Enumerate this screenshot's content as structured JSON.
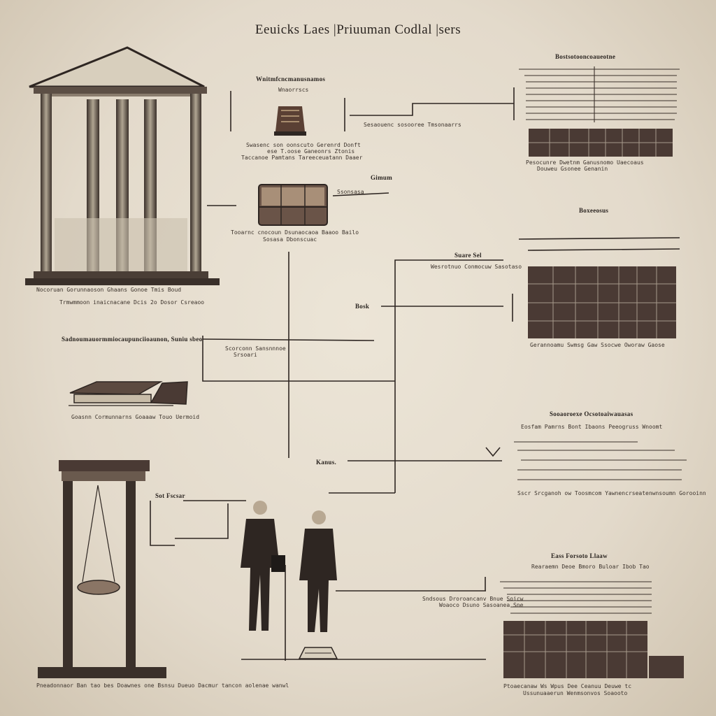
{
  "title": "Eeuicks Laes |Priuuman Codlal |sers",
  "colors": {
    "paper": "#e6ddce",
    "ink": "#2a2420",
    "block": "#4a3a34"
  },
  "icons": [
    "temple-icon",
    "pot-icon",
    "chest-icon",
    "book-icon",
    "scale-icon",
    "gavel-icon",
    "two-men-illustration"
  ],
  "temple": {
    "cap1": "Nocoruan Gorunnaoson Ghaans Gonoe Tmis Boud",
    "cap2": "Trmwmmoon inaicnacane Dcis 2o Dosor Csreaoo"
  },
  "pot": {
    "head": "Wnitmfcncmanusnamos",
    "sub": "Wnaorrscs",
    "cap1": "Swasenc son oonscuto Gerenrd Donft",
    "cap2": "ese T.oose Ganeonrs Ztonis",
    "cap3": "Taccanoe Pamtans Tareeceuatann Daaer"
  },
  "chest": {
    "head": "Gimum",
    "tag": "Ssonsasa",
    "cap1": "Tooarnc cnocoun Dsunaocaoa Baaoo Bailo",
    "cap2": "Sosasa Dbonscuac"
  },
  "topright": {
    "head": "Bostsotooncoaueotne",
    "cap1": "Pesocunre Dwetnm Ganusnomo Uaecoaus",
    "cap2": "Douweu Gsonee Genanin"
  },
  "label_top": "Sesaouenc sosooree Tmsonaarrs",
  "governance": "Boxeeosus",
  "scale_label": {
    "name": "Suare Sel",
    "cap": "Wesrotnuo Conmocuw Sasotaso"
  },
  "blocks_right": {
    "cap": "Gerannoamu Swmsg Gaw Ssocwe Oworaw Gaose"
  },
  "bork": "Bosk",
  "mid": {
    "head": "Sadnoumauormmiocaupunciioaunon, Suniu sbeo",
    "sub1": "Scorconn Sansnnnoe",
    "sub2": "Srsoari"
  },
  "book": {
    "cap": "Goasnn Cormunnarns Goaaaw Touo Uermoid"
  },
  "right_mid": {
    "head": "Sooaoroexe Ocsotoaiwauasas",
    "sub": "Eosfam Pamrns Bont Ibaons Peeogruss Wnoomt",
    "cap": "Sscr Srcganoh ow Toosmcom Yawnencrseatenwnsoumn Gorooinn"
  },
  "kanus": "Kanus.",
  "scale_box": {
    "head": "Sot Fscsar"
  },
  "bottom_right": {
    "head": "Eass Forsoto Llaaw",
    "sub": "Rearaemn Deoe Bmoro Buloar Ibob Tao",
    "cap1": "Ptoaecanaw Ws Wpus Dee Ceanuu Deuwe tc",
    "cap2": "Ussunuaaerun Wenmsonvos Soaooto"
  },
  "men": {
    "cap1": "Sndsous Droroancanv Bnue Soicw",
    "cap2": "Woaoco Dsuno Sasoanea Sne"
  },
  "bottom_left": {
    "cap": "Pneadonnaor Ban tao bes Doawnes one Bsnsu Dueuo Dacmur tancon aolenae wanwl"
  }
}
